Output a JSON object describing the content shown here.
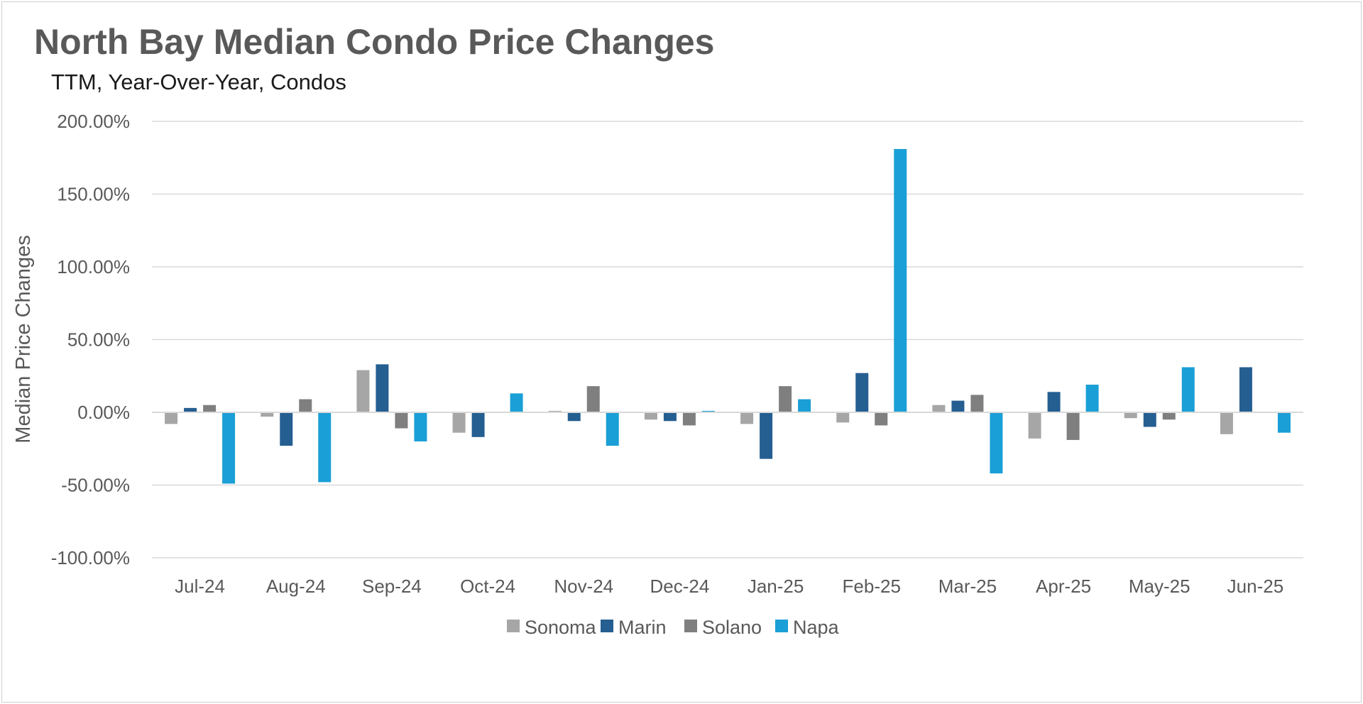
{
  "chart_data": {
    "type": "bar",
    "title": "North Bay Median Condo Price Changes",
    "subtitle": "TTM, Year-Over-Year,  Condos",
    "xlabel": "",
    "ylabel": "Median Price Changes",
    "ylim": [
      -100,
      200
    ],
    "yticks": [
      200,
      150,
      100,
      50,
      0,
      -50,
      -100
    ],
    "ytick_labels": [
      "200.00%",
      "150.00%",
      "100.00%",
      "50.00%",
      "0.00%",
      "-50.00%",
      "-100.00%"
    ],
    "grid": true,
    "legend_position": "bottom",
    "categories": [
      "Jul-24",
      "Aug-24",
      "Sep-24",
      "Oct-24",
      "Nov-24",
      "Dec-24",
      "Jan-25",
      "Feb-25",
      "Mar-25",
      "Apr-25",
      "May-25",
      "Jun-25"
    ],
    "series": [
      {
        "name": "Sonoma",
        "color": "#a6a6a6",
        "values": [
          -8,
          -3,
          29,
          -14,
          1,
          -5,
          -8,
          -7,
          5,
          -18,
          -4,
          -15
        ]
      },
      {
        "name": "Marin",
        "color": "#255e91",
        "values": [
          3,
          -23,
          33,
          -17,
          -6,
          -6,
          -32,
          27,
          8,
          14,
          -10,
          31
        ]
      },
      {
        "name": "Solano",
        "color": "#7f7f7f",
        "values": [
          5,
          9,
          -11,
          0,
          18,
          -9,
          18,
          -9,
          12,
          -19,
          -5,
          0
        ]
      },
      {
        "name": "Napa",
        "color": "#1a9fd6",
        "values": [
          -49,
          -48,
          -20,
          13,
          -23,
          1,
          9,
          181,
          -42,
          19,
          31,
          -14
        ]
      }
    ]
  }
}
